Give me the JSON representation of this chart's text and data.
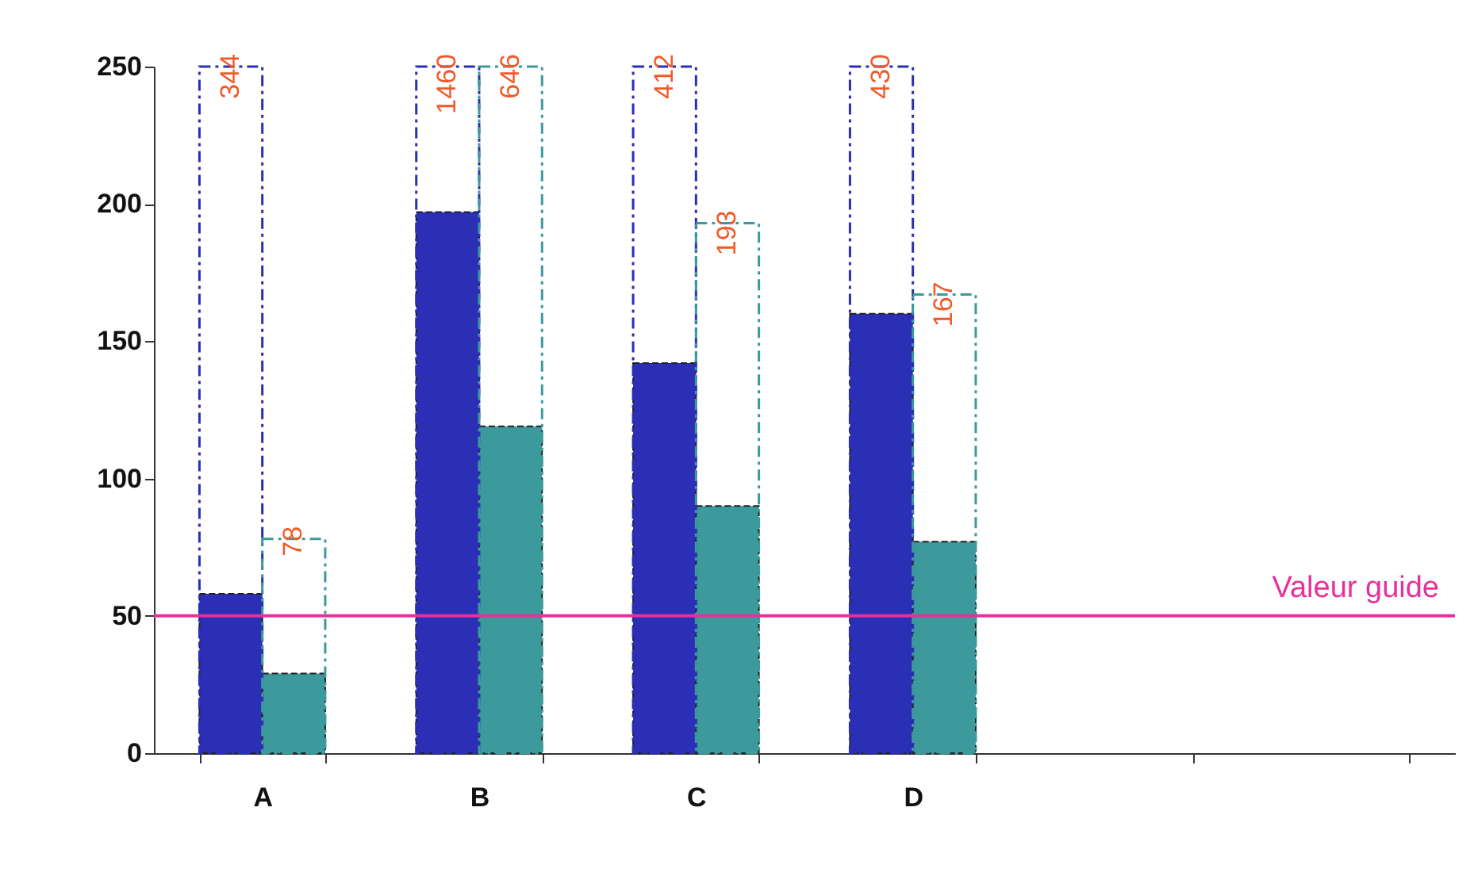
{
  "chart_data": {
    "type": "bar",
    "categories": [
      "A",
      "B",
      "C",
      "D",
      null,
      null
    ],
    "series": [
      {
        "color": "#2b2fb5",
        "values": [
          58,
          197,
          142,
          160,
          null,
          null
        ]
      },
      {
        "color": "#3c9a9c",
        "values": [
          29,
          119,
          90,
          77,
          null,
          null
        ]
      },
      {
        "color": "#2b2fb5",
        "line_style": "dashed",
        "values": [
          250,
          250,
          250,
          250,
          null,
          null
        ],
        "value_labels": [
          null,
          null,
          null,
          null,
          null,
          null
        ]
      },
      {
        "color": "#3c9a9c",
        "line_style": "dashed",
        "values": [
          78,
          250,
          193,
          167,
          null,
          null
        ],
        "value_labels": [
          "78",
          null,
          "193",
          "167",
          null,
          null
        ]
      }
    ],
    "annotations": [
      {
        "text": "344",
        "x": "A",
        "y": 250
      },
      {
        "text": "1460",
        "x": "B",
        "y": 250
      },
      {
        "text": "646",
        "x": "B",
        "y": 250
      },
      {
        "text": "412",
        "x": "C",
        "y": 250
      },
      {
        "text": "430",
        "x": "D",
        "y": 250
      }
    ],
    "ylim": [
      0,
      250
    ],
    "yticks": [
      0,
      50,
      100,
      150,
      200,
      250
    ],
    "grid": false,
    "ref_lines": [
      {
        "axis": "y",
        "value": 50,
        "label": "Valeur guide",
        "color": "#e8309a"
      }
    ]
  }
}
